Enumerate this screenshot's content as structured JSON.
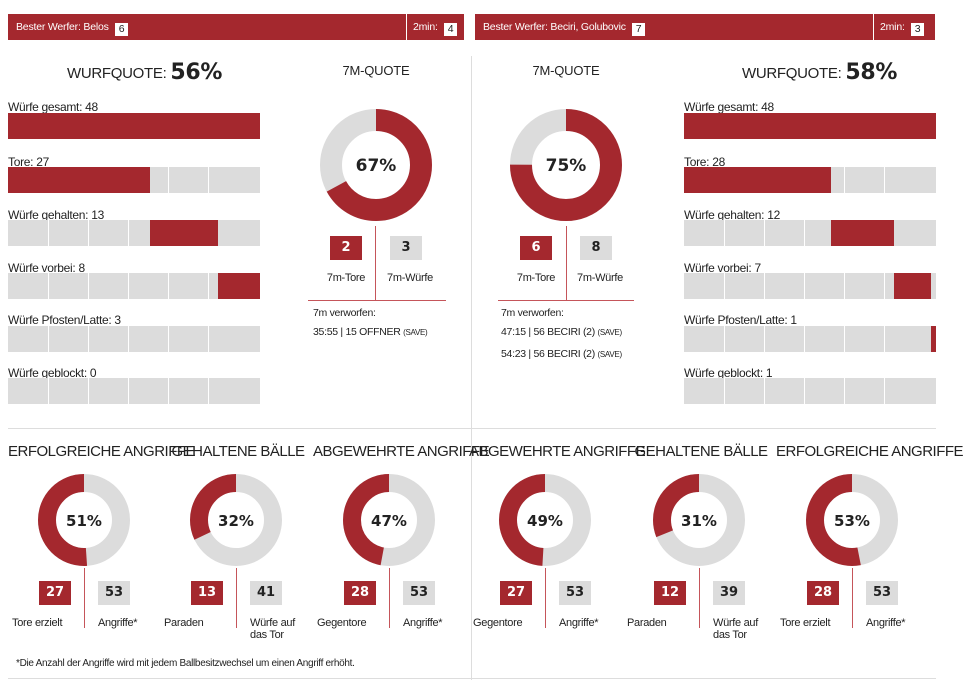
{
  "teams": [
    {
      "best_shooter_label": "Bester Werfer: Belos",
      "best_shooter_goals": "6",
      "two_min_label": "2min:",
      "two_min_value": "4",
      "wurfquote_label": "WURFQUOTE:",
      "wurfquote_value": "56%",
      "shot_stats": [
        {
          "label": "Würfe gesamt: 48",
          "value": 48
        },
        {
          "label": "Tore: 27",
          "value": 27
        },
        {
          "label": "Würfe gehalten: 13",
          "value": 13
        },
        {
          "label": "Würfe vorbei: 8",
          "value": 8
        },
        {
          "label": "Würfe Pfosten/Latte: 3",
          "value": 3
        },
        {
          "label": "Würfe geblockt: 0",
          "value": 0
        }
      ],
      "seven_m": {
        "title": "7M-QUOTE",
        "percent_label": "67%",
        "percent": 67,
        "goals": "2",
        "goals_label": "7m-Tore",
        "shots": "3",
        "shots_label": "7m-Würfe",
        "missed_title": "7m verworfen:",
        "missed": [
          {
            "text": "35:55 | 15 OFFNER",
            "note": "(SAVE)"
          }
        ]
      }
    },
    {
      "best_shooter_label": "Bester Werfer: Beciri, Golubovic",
      "best_shooter_goals": "7",
      "two_min_label": "2min:",
      "two_min_value": "3",
      "wurfquote_label": "WURFQUOTE:",
      "wurfquote_value": "58%",
      "shot_stats": [
        {
          "label": "Würfe gesamt: 48",
          "value": 48
        },
        {
          "label": "Tore: 28",
          "value": 28
        },
        {
          "label": "Würfe gehalten: 12",
          "value": 12
        },
        {
          "label": "Würfe vorbei: 7",
          "value": 7
        },
        {
          "label": "Würfe Pfosten/Latte: 1",
          "value": 1
        },
        {
          "label": "Würfe geblockt: 1",
          "value": 1
        }
      ],
      "seven_m": {
        "title": "7M-QUOTE",
        "percent_label": "75%",
        "percent": 75,
        "goals": "6",
        "goals_label": "7m-Tore",
        "shots": "8",
        "shots_label": "7m-Würfe",
        "missed_title": "7m verworfen:",
        "missed": [
          {
            "text": "47:15 | 56 BECIRI (2)",
            "note": "(SAVE)"
          },
          {
            "text": "54:23 | 56 BECIRI (2)",
            "note": "(SAVE)"
          }
        ]
      }
    }
  ],
  "bottom_stats": [
    {
      "title": "ERFOLGREICHE ANGRIFFE",
      "percent_label": "51%",
      "percent": 51,
      "left_value": "27",
      "left_label": "Tore erzielt",
      "right_value": "53",
      "right_label": "Angriffe*"
    },
    {
      "title": "GEHALTENE BÄLLE",
      "percent_label": "32%",
      "percent": 32,
      "left_value": "13",
      "left_label": "Paraden",
      "right_value": "41",
      "right_label": "Würfe auf das Tor"
    },
    {
      "title": "ABGEWEHRTE ANGRIFFE",
      "percent_label": "47%",
      "percent": 47,
      "left_value": "28",
      "left_label": "Gegentore",
      "right_value": "53",
      "right_label": "Angriffe*"
    },
    {
      "title": "ABGEWEHRTE ANGRIFFE",
      "percent_label": "49%",
      "percent": 49,
      "left_value": "27",
      "left_label": "Gegentore",
      "right_value": "53",
      "right_label": "Angriffe*"
    },
    {
      "title": "GEHALTENE BÄLLE",
      "percent_label": "31%",
      "percent": 31,
      "left_value": "12",
      "left_label": "Paraden",
      "right_value": "39",
      "right_label": "Würfe auf das Tor"
    },
    {
      "title": "ERFOLGREICHE ANGRIFFE",
      "percent_label": "53%",
      "percent": 53,
      "left_value": "28",
      "left_label": "Tore erzielt",
      "right_value": "53",
      "right_label": "Angriffe*"
    }
  ],
  "footnote": "*Die Anzahl der Angriffe wird mit jedem Ballbesitzwechsel um einen Angriff erhöht.",
  "colors": {
    "accent": "#a4282e",
    "track": "#dcdcdc"
  },
  "chart_data": [
    {
      "type": "bar",
      "title": "WURFQUOTE: 56%",
      "categories": [
        "Würfe gesamt",
        "Tore",
        "Würfe gehalten",
        "Würfe vorbei",
        "Würfe Pfosten/Latte",
        "Würfe geblockt"
      ],
      "values": [
        48,
        27,
        13,
        8,
        3,
        0
      ]
    },
    {
      "type": "bar",
      "title": "WURFQUOTE: 58%",
      "categories": [
        "Würfe gesamt",
        "Tore",
        "Würfe gehalten",
        "Würfe vorbei",
        "Würfe Pfosten/Latte",
        "Würfe geblockt"
      ],
      "values": [
        48,
        28,
        12,
        7,
        1,
        1
      ]
    },
    {
      "type": "pie",
      "title": "7M-QUOTE",
      "values": [
        67,
        33
      ]
    },
    {
      "type": "pie",
      "title": "7M-QUOTE",
      "values": [
        75,
        25
      ]
    },
    {
      "type": "pie",
      "title": "ERFOLGREICHE ANGRIFFE",
      "values": [
        51,
        49
      ]
    },
    {
      "type": "pie",
      "title": "GEHALTENE BÄLLE",
      "values": [
        32,
        68
      ]
    },
    {
      "type": "pie",
      "title": "ABGEWEHRTE ANGRIFFE",
      "values": [
        47,
        53
      ]
    },
    {
      "type": "pie",
      "title": "ABGEWEHRTE ANGRIFFE",
      "values": [
        49,
        51
      ]
    },
    {
      "type": "pie",
      "title": "GEHALTENE BÄLLE",
      "values": [
        31,
        69
      ]
    },
    {
      "type": "pie",
      "title": "ERFOLGREICHE ANGRIFFE",
      "values": [
        53,
        47
      ]
    }
  ]
}
